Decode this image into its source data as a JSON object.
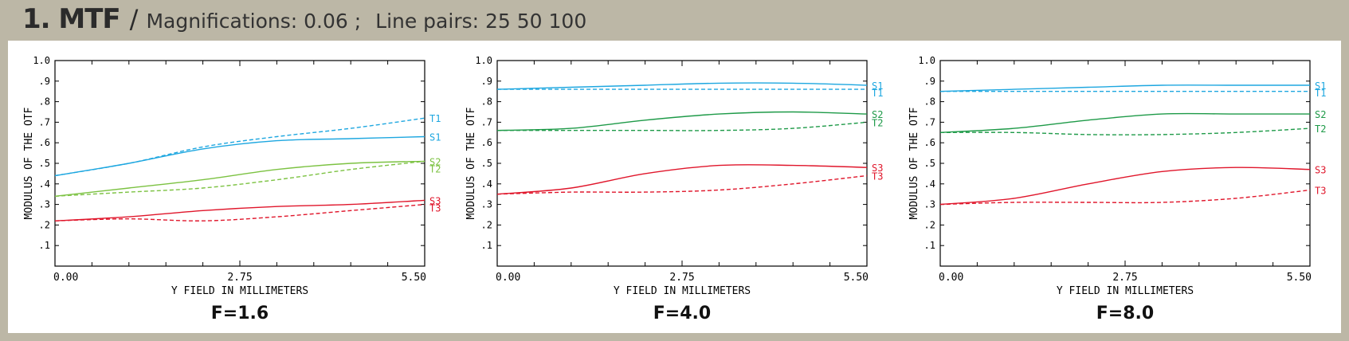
{
  "header": {
    "title": "1. MTF",
    "separator": "/",
    "magnifications": "Magnifications: 0.06 ;",
    "line_pairs": "Line pairs: 25 50 100"
  },
  "colors": {
    "pair1": "#1ea7e0",
    "pair2": "#7cc242",
    "pair3": "#e0162b",
    "pair2_f4": "#1e9a48"
  },
  "chart_data": [
    {
      "type": "line",
      "title": "F=1.6",
      "xlabel": "Y FIELD IN MILLIMETERS",
      "ylabel": "MODULUS OF THE OTF",
      "xlim": [
        0,
        5.5
      ],
      "ylim": [
        0,
        1.0
      ],
      "x_tick_labels": [
        "0.00",
        "2.75",
        "5.50"
      ],
      "y_tick_labels": [
        ".1",
        ".2",
        ".3",
        ".4",
        ".5",
        ".6",
        ".7",
        ".8",
        ".9",
        "1.0"
      ],
      "x": [
        0,
        1.1,
        2.2,
        3.3,
        4.4,
        5.5
      ],
      "series": [
        {
          "name": "S1",
          "line": "solid",
          "color": "#1ea7e0",
          "values": [
            0.44,
            0.5,
            0.57,
            0.61,
            0.62,
            0.63
          ]
        },
        {
          "name": "T1",
          "line": "dashed",
          "color": "#1ea7e0",
          "values": [
            0.44,
            0.5,
            0.58,
            0.63,
            0.67,
            0.72
          ]
        },
        {
          "name": "S2",
          "line": "solid",
          "color": "#7cc242",
          "values": [
            0.34,
            0.38,
            0.42,
            0.47,
            0.5,
            0.51
          ]
        },
        {
          "name": "T2",
          "line": "dashed",
          "color": "#7cc242",
          "values": [
            0.34,
            0.36,
            0.38,
            0.42,
            0.47,
            0.51
          ]
        },
        {
          "name": "S3",
          "line": "solid",
          "color": "#e0162b",
          "values": [
            0.22,
            0.24,
            0.27,
            0.29,
            0.3,
            0.32
          ]
        },
        {
          "name": "T3",
          "line": "dashed",
          "color": "#e0162b",
          "values": [
            0.22,
            0.23,
            0.22,
            0.24,
            0.27,
            0.3
          ]
        }
      ]
    },
    {
      "type": "line",
      "title": "F=4.0",
      "xlabel": "Y FIELD IN MILLIMETERS",
      "ylabel": "MODULUS OF THE OTF",
      "xlim": [
        0,
        5.5
      ],
      "ylim": [
        0,
        1.0
      ],
      "x_tick_labels": [
        "0.00",
        "2.75",
        "5.50"
      ],
      "y_tick_labels": [
        ".1",
        ".2",
        ".3",
        ".4",
        ".5",
        ".6",
        ".7",
        ".8",
        ".9",
        "1.0"
      ],
      "x": [
        0,
        1.1,
        2.2,
        3.3,
        4.4,
        5.5
      ],
      "series": [
        {
          "name": "S1",
          "line": "solid",
          "color": "#1ea7e0",
          "values": [
            0.86,
            0.87,
            0.88,
            0.89,
            0.89,
            0.88
          ]
        },
        {
          "name": "T1",
          "line": "dashed",
          "color": "#1ea7e0",
          "values": [
            0.86,
            0.86,
            0.86,
            0.86,
            0.86,
            0.86
          ]
        },
        {
          "name": "S2",
          "line": "solid",
          "color": "#1e9a48",
          "values": [
            0.66,
            0.67,
            0.71,
            0.74,
            0.75,
            0.74
          ]
        },
        {
          "name": "T2",
          "line": "dashed",
          "color": "#1e9a48",
          "values": [
            0.66,
            0.66,
            0.66,
            0.66,
            0.67,
            0.7
          ]
        },
        {
          "name": "S3",
          "line": "solid",
          "color": "#e0162b",
          "values": [
            0.35,
            0.38,
            0.45,
            0.49,
            0.49,
            0.48
          ]
        },
        {
          "name": "T3",
          "line": "dashed",
          "color": "#e0162b",
          "values": [
            0.35,
            0.36,
            0.36,
            0.37,
            0.4,
            0.44
          ]
        }
      ]
    },
    {
      "type": "line",
      "title": "F=8.0",
      "xlabel": "Y FIELD IN MILLIMETERS",
      "ylabel": "MODULUS OF THE OTF",
      "xlim": [
        0,
        5.5
      ],
      "ylim": [
        0,
        1.0
      ],
      "x_tick_labels": [
        "0.00",
        "2.75",
        "5.50"
      ],
      "y_tick_labels": [
        ".1",
        ".2",
        ".3",
        ".4",
        ".5",
        ".6",
        ".7",
        ".8",
        ".9",
        "1.0"
      ],
      "x": [
        0,
        1.1,
        2.2,
        3.3,
        4.4,
        5.5
      ],
      "series": [
        {
          "name": "S1",
          "line": "solid",
          "color": "#1ea7e0",
          "values": [
            0.85,
            0.86,
            0.87,
            0.88,
            0.88,
            0.88
          ]
        },
        {
          "name": "T1",
          "line": "dashed",
          "color": "#1ea7e0",
          "values": [
            0.85,
            0.85,
            0.85,
            0.85,
            0.85,
            0.85
          ]
        },
        {
          "name": "S2",
          "line": "solid",
          "color": "#1e9a48",
          "values": [
            0.65,
            0.67,
            0.71,
            0.74,
            0.74,
            0.74
          ]
        },
        {
          "name": "T2",
          "line": "dashed",
          "color": "#1e9a48",
          "values": [
            0.65,
            0.65,
            0.64,
            0.64,
            0.65,
            0.67
          ]
        },
        {
          "name": "S3",
          "line": "solid",
          "color": "#e0162b",
          "values": [
            0.3,
            0.33,
            0.4,
            0.46,
            0.48,
            0.47
          ]
        },
        {
          "name": "T3",
          "line": "dashed",
          "color": "#e0162b",
          "values": [
            0.3,
            0.31,
            0.31,
            0.31,
            0.33,
            0.37
          ]
        }
      ]
    }
  ]
}
